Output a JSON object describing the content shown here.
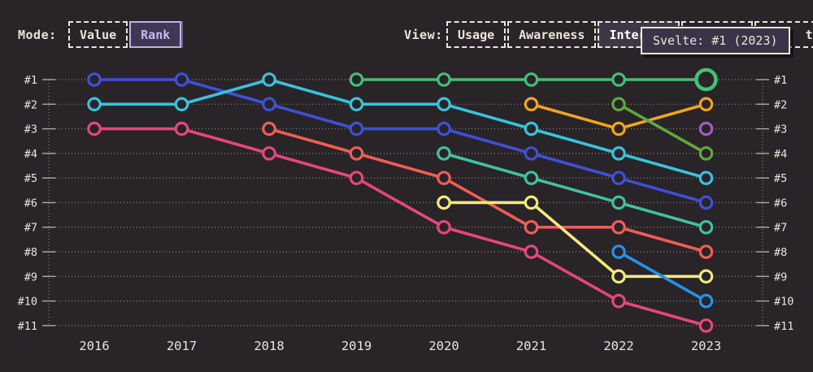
{
  "page": {
    "bg": "#292428",
    "fg": "#ece5d8"
  },
  "controls": {
    "mode": {
      "label": "Mode:",
      "buttons": [
        {
          "label": "Value",
          "selected": false,
          "style": "dashed"
        },
        {
          "label": "Rank",
          "selected": true,
          "style": "solid"
        }
      ]
    },
    "view": {
      "label": "View:",
      "buttons": [
        {
          "label": "Usage",
          "selected": false,
          "style": "dashed"
        },
        {
          "label": "Awareness",
          "selected": false,
          "style": "dashed"
        },
        {
          "label": "Interest",
          "selected": true,
          "style": "fill"
        },
        {
          "label": "",
          "selected": false,
          "style": "dashed",
          "note": "covered-by-tooltip"
        },
        {
          "label": "ty",
          "selected": false,
          "style": "dashed",
          "note": "clipped-by-tooltip"
        }
      ]
    }
  },
  "tooltip": {
    "text": "Svelte: #1 (2023)"
  },
  "chart_data": {
    "type": "line",
    "subtype": "bump-rank-chart",
    "title": "",
    "x": [
      2016,
      2017,
      2018,
      2019,
      2020,
      2021,
      2022,
      2023
    ],
    "y_axis": {
      "labels": [
        "#1",
        "#2",
        "#3",
        "#4",
        "#5",
        "#6",
        "#7",
        "#8",
        "#9",
        "#10",
        "#11"
      ],
      "min": 1,
      "max": 11,
      "inverted": true,
      "shown_both_sides": true
    },
    "grid": "dotted-horizontal",
    "legend": "none",
    "series": [
      {
        "name": "blue",
        "color": "#3f50d9",
        "ranks": [
          1,
          1,
          2,
          3,
          3,
          4,
          5,
          6
        ]
      },
      {
        "name": "cyan",
        "color": "#38c3dd",
        "ranks": [
          2,
          2,
          1,
          2,
          2,
          3,
          4,
          5
        ]
      },
      {
        "name": "pink",
        "color": "#e8457e",
        "ranks": [
          3,
          3,
          4,
          5,
          7,
          8,
          10,
          11
        ]
      },
      {
        "name": "salmon",
        "color": "#f25d55",
        "ranks": [
          null,
          null,
          3,
          4,
          5,
          7,
          7,
          8
        ]
      },
      {
        "name": "teal",
        "color": "#41c1a2",
        "ranks": [
          null,
          null,
          null,
          null,
          4,
          5,
          6,
          7
        ]
      },
      {
        "name": "yellow",
        "color": "#f4e87d",
        "ranks": [
          null,
          null,
          null,
          null,
          6,
          6,
          9,
          9
        ]
      },
      {
        "name": "orange",
        "color": "#f2a41f",
        "ranks": [
          null,
          null,
          null,
          null,
          null,
          2,
          3,
          2
        ]
      },
      {
        "name": "olive",
        "color": "#5fa83d",
        "ranks": [
          null,
          null,
          null,
          null,
          null,
          null,
          2,
          4
        ]
      },
      {
        "name": "azure",
        "color": "#2493e8",
        "ranks": [
          null,
          null,
          null,
          null,
          null,
          null,
          8,
          10
        ]
      },
      {
        "name": "purple",
        "color": "#a35cc4",
        "ranks": [
          null,
          null,
          null,
          null,
          null,
          null,
          null,
          3
        ]
      },
      {
        "name": "Svelte",
        "color": "#44c073",
        "ranks": [
          null,
          null,
          null,
          1,
          1,
          1,
          1,
          1
        ]
      }
    ],
    "highlight": {
      "series": "Svelte",
      "year": 2023,
      "rank": 1,
      "tooltip": "Svelte: #1 (2023)"
    }
  }
}
